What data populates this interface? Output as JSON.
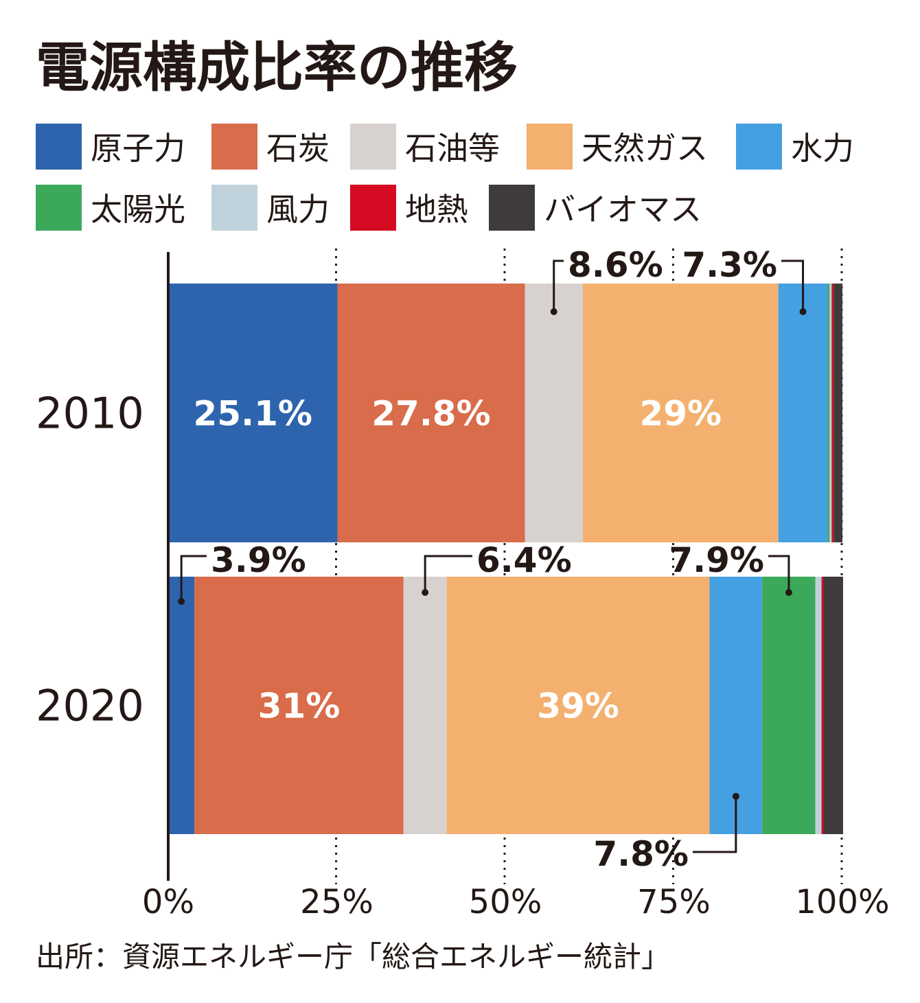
{
  "chart_data": {
    "type": "bar",
    "orientation": "horizontal",
    "stacked": true,
    "title": "電源構成比率の推移",
    "categories": [
      "2010",
      "2020"
    ],
    "series": [
      {
        "name": "原子力",
        "color": "#2e64ae",
        "values": [
          25.1,
          3.9
        ]
      },
      {
        "name": "石炭",
        "color": "#d96c4a",
        "values": [
          27.8,
          31
        ]
      },
      {
        "name": "石油等",
        "color": "#d7d1cf",
        "values": [
          8.6,
          6.4
        ]
      },
      {
        "name": "天然ガス",
        "color": "#f3b06f",
        "values": [
          29,
          39
        ]
      },
      {
        "name": "水力",
        "color": "#45a0e2",
        "values": [
          7.3,
          7.8
        ]
      },
      {
        "name": "太陽光",
        "color": "#3ca95a",
        "values": [
          0.3,
          7.9
        ]
      },
      {
        "name": "風力",
        "color": "#bfd2dc",
        "values": [
          0.3,
          0.9
        ]
      },
      {
        "name": "地熱",
        "color": "#d40b22",
        "values": [
          0.3,
          0.3
        ]
      },
      {
        "name": "バイオマス",
        "color": "#3f3b3a",
        "values": [
          1.3,
          2.9
        ]
      }
    ],
    "data_labels": [
      {
        "category": "2010",
        "series": "原子力",
        "text": "25.1%",
        "placement": "inside"
      },
      {
        "category": "2010",
        "series": "石炭",
        "text": "27.8%",
        "placement": "inside"
      },
      {
        "category": "2010",
        "series": "石油等",
        "text": "8.6%",
        "placement": "callout"
      },
      {
        "category": "2010",
        "series": "天然ガス",
        "text": "29%",
        "placement": "inside"
      },
      {
        "category": "2010",
        "series": "水力",
        "text": "7.3%",
        "placement": "callout"
      },
      {
        "category": "2020",
        "series": "原子力",
        "text": "3.9%",
        "placement": "callout"
      },
      {
        "category": "2020",
        "series": "石炭",
        "text": "31%",
        "placement": "inside"
      },
      {
        "category": "2020",
        "series": "石油等",
        "text": "6.4%",
        "placement": "callout"
      },
      {
        "category": "2020",
        "series": "天然ガス",
        "text": "39%",
        "placement": "inside"
      },
      {
        "category": "2020",
        "series": "水力",
        "text": "7.8%",
        "placement": "callout"
      },
      {
        "category": "2020",
        "series": "太陽光",
        "text": "7.9%",
        "placement": "callout"
      }
    ],
    "xlim": [
      0,
      100
    ],
    "x_ticks": [
      "0%",
      "25%",
      "50%",
      "75%",
      "100%"
    ],
    "grid": "dotted vertical at ticks",
    "legend_position": "top",
    "source": "出所：資源エネルギー庁「総合エネルギー統計」"
  }
}
